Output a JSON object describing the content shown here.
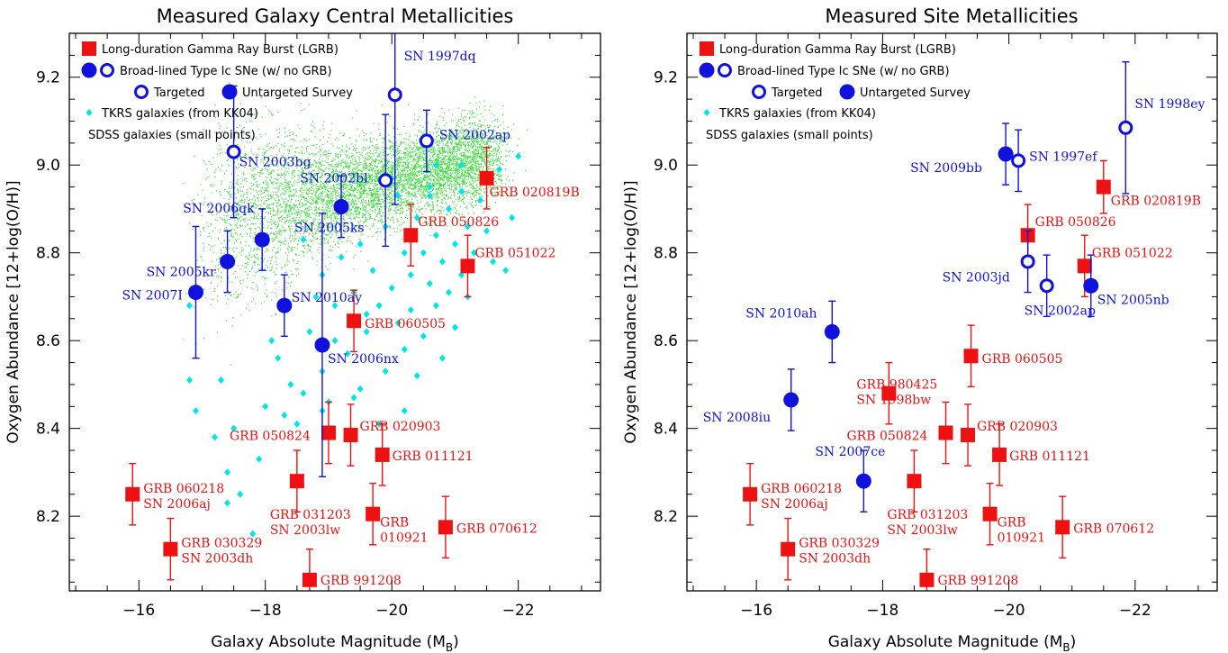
{
  "colors": {
    "lgrb": "#ee1111",
    "sne": "#1111dd",
    "tkrs": "#00e6e6",
    "sdss": "#33dd33",
    "axis": "#000000"
  },
  "chart_data": [
    {
      "type": "scatter",
      "title": "Measured Galaxy Central Metallicities",
      "xlabel": "Galaxy Absolute Magnitude (M",
      "xlabel_sub": "B",
      "ylabel": "Oxygen Abundance [12+log(O/H)]",
      "xlim": [
        -14.9,
        -23.3
      ],
      "ylim": [
        8.03,
        9.3
      ],
      "xticks": [
        -16,
        -18,
        -20,
        -22
      ],
      "yticks": [
        8.2,
        8.4,
        8.6,
        8.8,
        9.0,
        9.2
      ],
      "xtick_labels": [
        "−16",
        "−18",
        "−20",
        "−22"
      ],
      "ytick_labels": [
        "8.2",
        "8.4",
        "8.6",
        "8.8",
        "9.0",
        "9.2"
      ],
      "legend": {
        "position": "top-left",
        "entries": [
          "Long-duration Gamma Ray Burst (LGRB)",
          "Broad-lined Type Ic SNe (w/ no GRB)",
          "Targeted",
          "Untargeted Survey",
          "TKRS galaxies (from KK04)",
          "SDSS galaxies (small points)"
        ]
      },
      "lgrb": [
        {
          "x": -15.9,
          "y": 8.25,
          "err": 0.07,
          "label": [
            "GRB 060218",
            "SN 2006aj"
          ]
        },
        {
          "x": -16.5,
          "y": 8.125,
          "err": 0.07,
          "label": [
            "GRB 030329",
            "SN 2003dh"
          ]
        },
        {
          "x": -18.5,
          "y": 8.28,
          "err": 0.07,
          "label": [
            "GRB 031203",
            "SN 2003lw"
          ]
        },
        {
          "x": -18.7,
          "y": 8.055,
          "err": 0.07,
          "label": [
            "GRB 991208"
          ]
        },
        {
          "x": -19.0,
          "y": 8.39,
          "err": 0.07,
          "label": [
            "GRB 050824"
          ]
        },
        {
          "x": -19.35,
          "y": 8.385,
          "err": 0.07,
          "label": [
            "GRB 020903"
          ]
        },
        {
          "x": -19.85,
          "y": 8.34,
          "err": 0.07,
          "label": [
            "GRB 011121"
          ]
        },
        {
          "x": -19.7,
          "y": 8.205,
          "err": 0.07,
          "label": [
            "GRB",
            "010921"
          ]
        },
        {
          "x": -20.85,
          "y": 8.175,
          "err": 0.07,
          "label": [
            "GRB 070612"
          ]
        },
        {
          "x": -19.4,
          "y": 8.645,
          "err": 0.07,
          "label": [
            "GRB 060505"
          ]
        },
        {
          "x": -20.3,
          "y": 8.84,
          "err": 0.07,
          "label": [
            "GRB 050826"
          ]
        },
        {
          "x": -21.2,
          "y": 8.77,
          "err": 0.07,
          "label": [
            "GRB 051022"
          ]
        },
        {
          "x": -21.5,
          "y": 8.97,
          "err": 0.07,
          "label": [
            "GRB 020819B"
          ]
        }
      ],
      "sne_targeted": [
        {
          "x": -17.5,
          "y": 9.03,
          "err": 0.15,
          "label": "SN 2003bg"
        },
        {
          "x": -20.05,
          "y": 9.16,
          "err": 0.25,
          "label": "SN 1997dq"
        },
        {
          "x": -19.9,
          "y": 8.965,
          "err": 0.15,
          "label": "SN 2002bl"
        },
        {
          "x": -20.55,
          "y": 9.055,
          "err": 0.07,
          "label": "SN 2002ap"
        }
      ],
      "sne_untargeted": [
        {
          "x": -16.9,
          "y": 8.71,
          "err": 0.15,
          "label": "SN 2007I"
        },
        {
          "x": -17.4,
          "y": 8.78,
          "err": 0.07,
          "label": "SN 2005kr"
        },
        {
          "x": -17.95,
          "y": 8.83,
          "err": 0.07,
          "label": "SN 2006qk"
        },
        {
          "x": -18.3,
          "y": 8.68,
          "err": 0.07,
          "label": "SN 2010ay"
        },
        {
          "x": -18.9,
          "y": 8.59,
          "err": 0.3,
          "label": "SN 2006nx"
        },
        {
          "x": -19.2,
          "y": 8.905,
          "err": 0.07,
          "label": "SN 2005ks"
        }
      ],
      "tkrs": [
        [
          -16.9,
          8.44
        ],
        [
          -16.8,
          8.51
        ],
        [
          -16.8,
          8.68
        ],
        [
          -17.3,
          8.51
        ],
        [
          -17.2,
          8.38
        ],
        [
          -17.4,
          8.3
        ],
        [
          -17.5,
          8.4
        ],
        [
          -17.6,
          8.25
        ],
        [
          -17.9,
          8.33
        ],
        [
          -17.8,
          8.16
        ],
        [
          -17.4,
          8.23
        ],
        [
          -18.0,
          8.45
        ],
        [
          -18.1,
          8.6
        ],
        [
          -18.2,
          8.56
        ],
        [
          -18.3,
          8.43
        ],
        [
          -18.4,
          8.5
        ],
        [
          -18.5,
          8.41
        ],
        [
          -18.6,
          8.48
        ],
        [
          -18.7,
          8.62
        ],
        [
          -18.8,
          8.7
        ],
        [
          -18.9,
          8.75
        ],
        [
          -18.9,
          8.53
        ],
        [
          -19.0,
          8.46
        ],
        [
          -19.1,
          8.68
        ],
        [
          -19.2,
          8.79
        ],
        [
          -19.3,
          8.57
        ],
        [
          -19.4,
          8.71
        ],
        [
          -19.5,
          8.82
        ],
        [
          -19.5,
          8.49
        ],
        [
          -19.6,
          8.62
        ],
        [
          -19.7,
          8.76
        ],
        [
          -19.8,
          8.68
        ],
        [
          -19.9,
          8.53
        ],
        [
          -19.9,
          8.86
        ],
        [
          -20.0,
          8.72
        ],
        [
          -20.1,
          8.64
        ],
        [
          -20.1,
          8.93
        ],
        [
          -20.2,
          8.58
        ],
        [
          -20.3,
          8.67
        ],
        [
          -20.3,
          8.75
        ],
        [
          -20.4,
          8.88
        ],
        [
          -20.4,
          8.52
        ],
        [
          -20.5,
          8.8
        ],
        [
          -20.5,
          8.61
        ],
        [
          -20.6,
          8.73
        ],
        [
          -20.6,
          8.95
        ],
        [
          -20.7,
          8.84
        ],
        [
          -20.7,
          8.68
        ],
        [
          -20.8,
          8.78
        ],
        [
          -20.8,
          8.56
        ],
        [
          -20.9,
          8.9
        ],
        [
          -20.9,
          8.71
        ],
        [
          -21.0,
          8.82
        ],
        [
          -21.0,
          8.63
        ],
        [
          -21.1,
          8.75
        ],
        [
          -21.1,
          8.94
        ],
        [
          -21.2,
          8.86
        ],
        [
          -21.3,
          8.8
        ],
        [
          -21.4,
          8.92
        ],
        [
          -21.5,
          8.85
        ],
        [
          -21.6,
          8.78
        ],
        [
          -21.7,
          8.99
        ],
        [
          -21.8,
          8.76
        ],
        [
          -22.0,
          9.02
        ],
        [
          -21.9,
          8.88
        ],
        [
          -20.2,
          8.44
        ],
        [
          -19.8,
          8.41
        ],
        [
          -19.4,
          8.47
        ],
        [
          -18.9,
          8.44
        ],
        [
          -20.0,
          8.97
        ],
        [
          -20.6,
          8.93
        ],
        [
          -21.1,
          9.0
        ],
        [
          -18.6,
          8.83
        ],
        [
          -19.1,
          8.6
        ],
        [
          -20.2,
          8.8
        ],
        [
          -21.2,
          8.7
        ],
        [
          -19.6,
          8.66
        ],
        [
          -20.7,
          9.0
        ]
      ]
    },
    {
      "type": "scatter",
      "title": "Measured Site Metallicities",
      "xlabel": "Galaxy Absolute Magnitude (M",
      "xlabel_sub": "B",
      "ylabel": "Oxygen Abundance [12+log(O/H)]",
      "xlim": [
        -14.9,
        -23.3
      ],
      "ylim": [
        8.03,
        9.3
      ],
      "xticks": [
        -16,
        -18,
        -20,
        -22
      ],
      "yticks": [
        8.2,
        8.4,
        8.6,
        8.8,
        9.0,
        9.2
      ],
      "xtick_labels": [
        "−16",
        "−18",
        "−20",
        "−22"
      ],
      "ytick_labels": [
        "8.2",
        "8.4",
        "8.6",
        "8.8",
        "9.0",
        "9.2"
      ],
      "legend": {
        "position": "top-left",
        "entries": [
          "Long-duration Gamma Ray Burst (LGRB)",
          "Broad-lined Type Ic SNe (w/ no GRB)",
          "Targeted",
          "Untargeted Survey",
          "TKRS galaxies (from KK04)",
          "SDSS galaxies (small points)"
        ]
      },
      "lgrb": [
        {
          "x": -15.9,
          "y": 8.25,
          "err": 0.07,
          "label": [
            "GRB 060218",
            "SN 2006aj"
          ]
        },
        {
          "x": -16.5,
          "y": 8.125,
          "err": 0.07,
          "label": [
            "GRB 030329",
            "SN 2003dh"
          ]
        },
        {
          "x": -18.5,
          "y": 8.28,
          "err": 0.07,
          "label": [
            "GRB 031203",
            "SN 2003lw"
          ]
        },
        {
          "x": -18.7,
          "y": 8.055,
          "err": 0.07,
          "label": [
            "GRB 991208"
          ]
        },
        {
          "x": -19.0,
          "y": 8.39,
          "err": 0.07,
          "label": [
            "GRB 050824"
          ]
        },
        {
          "x": -19.35,
          "y": 8.385,
          "err": 0.07,
          "label": [
            "GRB 020903"
          ]
        },
        {
          "x": -19.85,
          "y": 8.34,
          "err": 0.07,
          "label": [
            "GRB 011121"
          ]
        },
        {
          "x": -19.7,
          "y": 8.205,
          "err": 0.07,
          "label": [
            "GRB",
            "010921"
          ]
        },
        {
          "x": -20.85,
          "y": 8.175,
          "err": 0.07,
          "label": [
            "GRB 070612"
          ]
        },
        {
          "x": -18.1,
          "y": 8.48,
          "err": 0.07,
          "label": [
            "GRB 980425",
            "SN 1998bw"
          ]
        },
        {
          "x": -19.4,
          "y": 8.565,
          "err": 0.07,
          "label": [
            "GRB 060505"
          ]
        },
        {
          "x": -20.3,
          "y": 8.84,
          "err": 0.07,
          "label": [
            "GRB 050826"
          ]
        },
        {
          "x": -21.2,
          "y": 8.77,
          "err": 0.07,
          "label": [
            "GRB 051022"
          ]
        },
        {
          "x": -21.5,
          "y": 8.95,
          "err": 0.06,
          "label": [
            "GRB 020819B"
          ]
        }
      ],
      "sne_targeted": [
        {
          "x": -20.15,
          "y": 9.01,
          "err": 0.07,
          "label": "SN 1997ef"
        },
        {
          "x": -21.85,
          "y": 9.085,
          "err": 0.15,
          "label": "SN 1998ey"
        },
        {
          "x": -20.3,
          "y": 8.78,
          "err": 0.07,
          "label": "SN 2003jd"
        },
        {
          "x": -20.6,
          "y": 8.725,
          "err": 0.07,
          "label": "SN 2002ap"
        }
      ],
      "sne_untargeted": [
        {
          "x": -19.95,
          "y": 9.025,
          "err": 0.07,
          "label": "SN 2009bb"
        },
        {
          "x": -21.3,
          "y": 8.725,
          "err": 0.07,
          "label": "SN 2005nb"
        },
        {
          "x": -17.2,
          "y": 8.62,
          "err": 0.07,
          "label": "SN 2010ah"
        },
        {
          "x": -16.55,
          "y": 8.465,
          "err": 0.07,
          "label": "SN 2008iu"
        },
        {
          "x": -17.7,
          "y": 8.28,
          "err": 0.07,
          "label": "SN 2007ce"
        }
      ],
      "tkrs": []
    }
  ]
}
